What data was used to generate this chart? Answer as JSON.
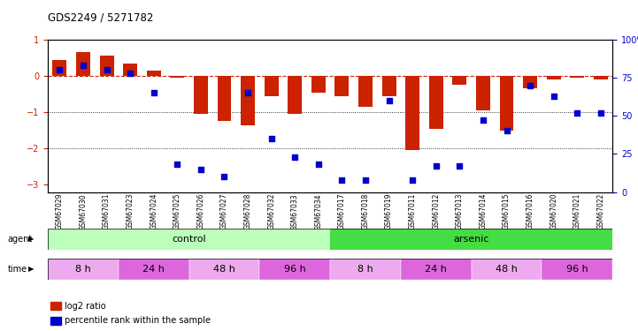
{
  "title": "GDS2249 / 5271782",
  "samples": [
    "GSM67029",
    "GSM67030",
    "GSM67031",
    "GSM67023",
    "GSM67024",
    "GSM67025",
    "GSM67026",
    "GSM67027",
    "GSM67028",
    "GSM67032",
    "GSM67033",
    "GSM67034",
    "GSM67017",
    "GSM67018",
    "GSM67019",
    "GSM67011",
    "GSM67012",
    "GSM67013",
    "GSM67014",
    "GSM67015",
    "GSM67016",
    "GSM67020",
    "GSM67021",
    "GSM67022"
  ],
  "log2_ratio": [
    0.45,
    0.65,
    0.55,
    0.35,
    0.15,
    -0.05,
    -1.05,
    -1.25,
    -1.35,
    -0.55,
    -1.05,
    -0.45,
    -0.55,
    -0.85,
    -0.55,
    -2.05,
    -1.45,
    -0.25,
    -0.95,
    -1.5,
    -0.35,
    -0.1,
    -0.05,
    -0.1
  ],
  "percentile": [
    80,
    83,
    80,
    78,
    65,
    18,
    15,
    10,
    65,
    35,
    23,
    18,
    8,
    8,
    60,
    8,
    17,
    17,
    47,
    40,
    70,
    63,
    52,
    52
  ],
  "bar_color": "#cc2200",
  "dot_color": "#0000cc",
  "zero_line_color": "#cc2200",
  "bg_color": "#ffffff",
  "ylim_left": [
    -3.2,
    1.0
  ],
  "ylim_right": [
    0,
    100
  ],
  "yticks_left": [
    1,
    0,
    -1,
    -2,
    -3
  ],
  "yticks_right": [
    0,
    25,
    50,
    75,
    100
  ],
  "agent_groups": [
    {
      "label": "control",
      "start": 0,
      "end": 12,
      "color": "#bbffbb"
    },
    {
      "label": "arsenic",
      "start": 12,
      "end": 24,
      "color": "#44dd44"
    }
  ],
  "time_groups": [
    {
      "label": "8 h",
      "start": 0,
      "end": 3,
      "color": "#eeaaee"
    },
    {
      "label": "24 h",
      "start": 3,
      "end": 6,
      "color": "#dd66dd"
    },
    {
      "label": "48 h",
      "start": 6,
      "end": 9,
      "color": "#eeaaee"
    },
    {
      "label": "96 h",
      "start": 9,
      "end": 12,
      "color": "#dd66dd"
    },
    {
      "label": "8 h",
      "start": 12,
      "end": 15,
      "color": "#eeaaee"
    },
    {
      "label": "24 h",
      "start": 15,
      "end": 18,
      "color": "#dd66dd"
    },
    {
      "label": "48 h",
      "start": 18,
      "end": 21,
      "color": "#eeaaee"
    },
    {
      "label": "96 h",
      "start": 21,
      "end": 24,
      "color": "#dd66dd"
    }
  ],
  "legend_items": [
    {
      "label": "log2 ratio",
      "color": "#cc2200"
    },
    {
      "label": "percentile rank within the sample",
      "color": "#0000cc"
    }
  ]
}
